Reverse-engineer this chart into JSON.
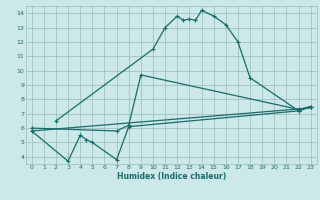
{
  "bg_color": "#cce8e8",
  "grid_color": "#99bbbb",
  "line_color": "#1a6b6b",
  "xlim": [
    -0.5,
    23.5
  ],
  "ylim": [
    3.5,
    14.5
  ],
  "xticks": [
    0,
    1,
    2,
    3,
    4,
    5,
    6,
    7,
    8,
    9,
    10,
    11,
    12,
    13,
    14,
    15,
    16,
    17,
    18,
    19,
    20,
    21,
    22,
    23
  ],
  "yticks": [
    4,
    5,
    6,
    7,
    8,
    9,
    10,
    11,
    12,
    13,
    14
  ],
  "xlabel": "Humidex (Indice chaleur)",
  "line1_x": [
    2,
    10,
    11,
    12,
    12.5,
    13,
    13.5,
    14,
    15,
    16,
    17,
    18,
    22,
    23
  ],
  "line1_y": [
    6.5,
    11.5,
    13.0,
    13.8,
    13.5,
    13.6,
    13.5,
    14.2,
    13.8,
    13.2,
    12.0,
    9.5,
    7.2,
    7.5
  ],
  "line2_x": [
    0,
    7,
    8,
    9,
    22,
    23
  ],
  "line2_y": [
    6.0,
    5.8,
    6.2,
    9.7,
    7.3,
    7.5
  ],
  "line3_x": [
    0,
    3,
    4,
    4.5,
    5,
    7,
    8,
    22,
    23
  ],
  "line3_y": [
    5.8,
    3.7,
    5.5,
    5.2,
    5.0,
    3.8,
    6.1,
    7.2,
    7.5
  ],
  "line4_x": [
    0,
    23
  ],
  "line4_y": [
    5.8,
    7.4
  ]
}
